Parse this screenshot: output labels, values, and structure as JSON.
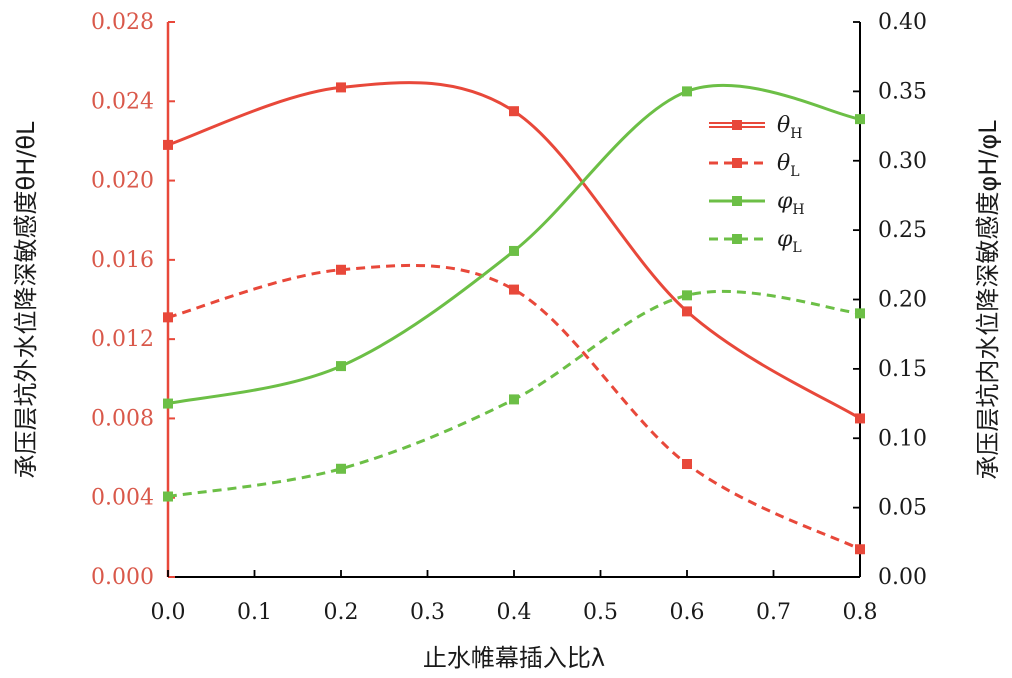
{
  "chart_data": {
    "type": "line",
    "x": [
      0.0,
      0.2,
      0.4,
      0.6,
      0.8
    ],
    "x_ticks": [
      "0.0",
      "0.1",
      "0.2",
      "0.3",
      "0.4",
      "0.5",
      "0.6",
      "0.7",
      "0.8"
    ],
    "xlim": [
      0,
      0.8
    ],
    "xlabel": "止水帷幕插入比λ",
    "ylabel_left": "承压层坑外水位降深敏感度θH/θL",
    "ylabel_right": "承压层坑内水位降深敏感度φH/φL",
    "ylim_left": [
      0,
      0.028
    ],
    "ylim_right": [
      0,
      0.4
    ],
    "yticks_left": [
      "0.000",
      "0.004",
      "0.008",
      "0.012",
      "0.016",
      "0.020",
      "0.024",
      "0.028"
    ],
    "yticks_right": [
      "0.00",
      "0.05",
      "0.10",
      "0.15",
      "0.20",
      "0.25",
      "0.30",
      "0.35",
      "0.40"
    ],
    "series": [
      {
        "name": "θH",
        "axis": "left",
        "color": "#e8483a",
        "style": "solid",
        "values": [
          0.0218,
          0.0247,
          0.0235,
          0.0134,
          0.008
        ]
      },
      {
        "name": "θL",
        "axis": "left",
        "color": "#e8483a",
        "style": "dashed",
        "values": [
          0.0131,
          0.0155,
          0.0145,
          0.0057,
          0.0014
        ]
      },
      {
        "name": "φH",
        "axis": "right",
        "color": "#6cbf46",
        "style": "solid",
        "values": [
          0.125,
          0.152,
          0.235,
          0.35,
          0.33
        ]
      },
      {
        "name": "φL",
        "axis": "right",
        "color": "#6cbf46",
        "style": "dashed",
        "values": [
          0.058,
          0.078,
          0.128,
          0.203,
          0.19
        ]
      }
    ],
    "legend_position": "top-right",
    "grid": false
  }
}
